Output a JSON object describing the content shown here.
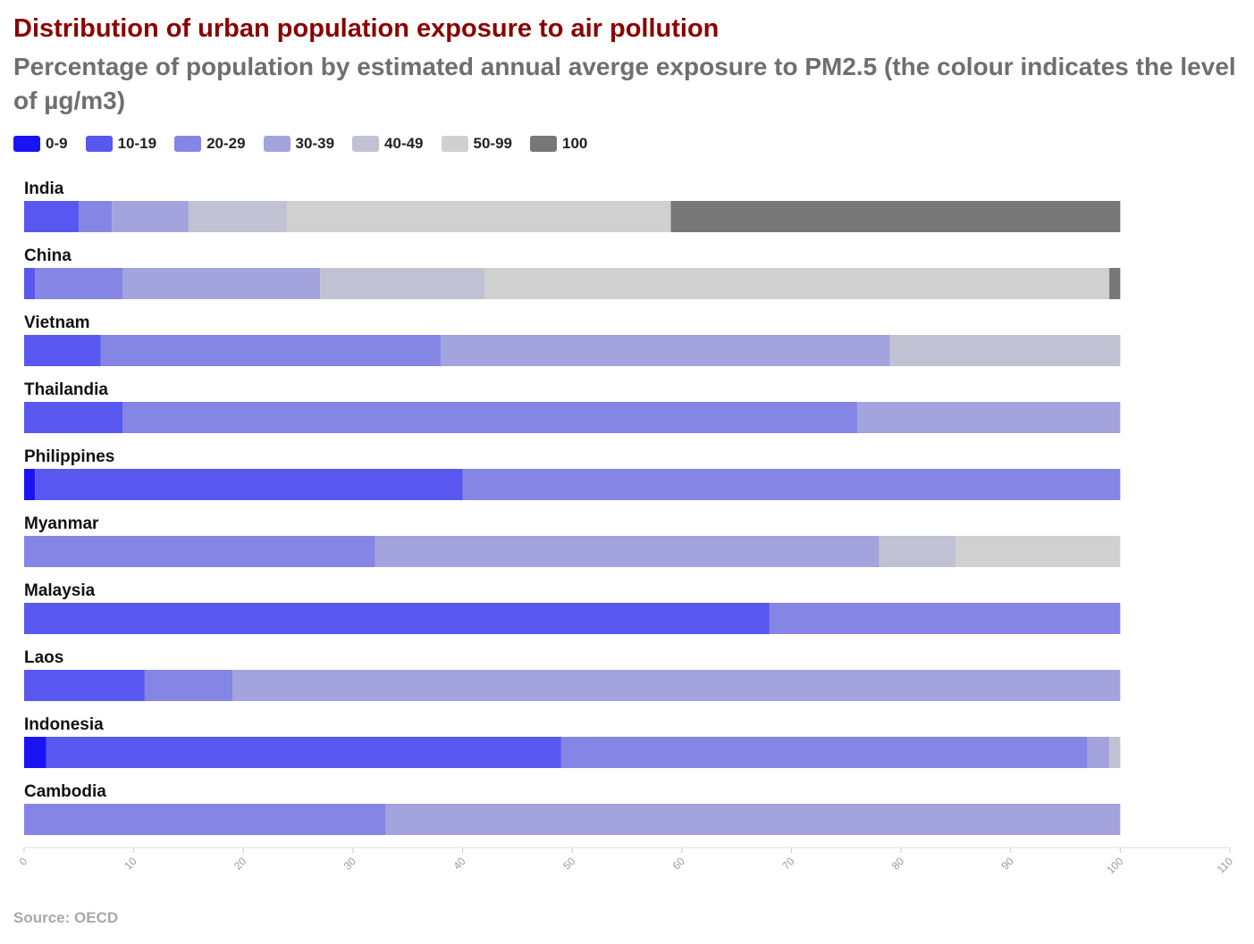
{
  "title": "Distribution of urban population exposure to air pollution",
  "subtitle": "Percentage of population by estimated annual averge exposure to PM2.5 (the colour indicates the level of µg/m3)",
  "source": "Source: OECD",
  "legend": [
    {
      "label": "0-9",
      "color": "#1a14f5"
    },
    {
      "label": "10-19",
      "color": "#5858f0"
    },
    {
      "label": "20-29",
      "color": "#8585e5"
    },
    {
      "label": "30-39",
      "color": "#a3a3de"
    },
    {
      "label": "40-49",
      "color": "#c1c1d4"
    },
    {
      "label": "50-99",
      "color": "#d0d0d0"
    },
    {
      "label": "100",
      "color": "#777777"
    }
  ],
  "chart_data": {
    "type": "bar",
    "orientation": "horizontal",
    "stacked": true,
    "categories": [
      "India",
      "China",
      "Vietnam",
      "Thailandia",
      "Philippines",
      "Myanmar",
      "Malaysia",
      "Laos",
      "Indonesia",
      "Cambodia"
    ],
    "series": [
      {
        "name": "0-9",
        "values": [
          0,
          0,
          0,
          0,
          1,
          0,
          0,
          0,
          2,
          0
        ]
      },
      {
        "name": "10-19",
        "values": [
          5,
          1,
          7,
          9,
          39,
          0,
          68,
          11,
          47,
          0
        ]
      },
      {
        "name": "20-29",
        "values": [
          3,
          8,
          31,
          67,
          60,
          32,
          32,
          8,
          48,
          33
        ]
      },
      {
        "name": "30-39",
        "values": [
          7,
          18,
          41,
          24,
          0,
          46,
          0,
          81,
          2,
          67
        ]
      },
      {
        "name": "40-49",
        "values": [
          9,
          15,
          21,
          0,
          0,
          7,
          0,
          0,
          1,
          0
        ]
      },
      {
        "name": "50-99",
        "values": [
          35,
          57,
          0,
          0,
          0,
          15,
          0,
          0,
          0,
          0
        ]
      },
      {
        "name": "100",
        "values": [
          41,
          1,
          0,
          0,
          0,
          0,
          0,
          0,
          0,
          0
        ]
      }
    ],
    "xlim": [
      0,
      110
    ],
    "xticks": [
      "0",
      "10",
      "20",
      "30",
      "40",
      "50",
      "60",
      "70",
      "80",
      "90",
      "100",
      "110"
    ],
    "grid": false,
    "legend_position": "top-left"
  }
}
